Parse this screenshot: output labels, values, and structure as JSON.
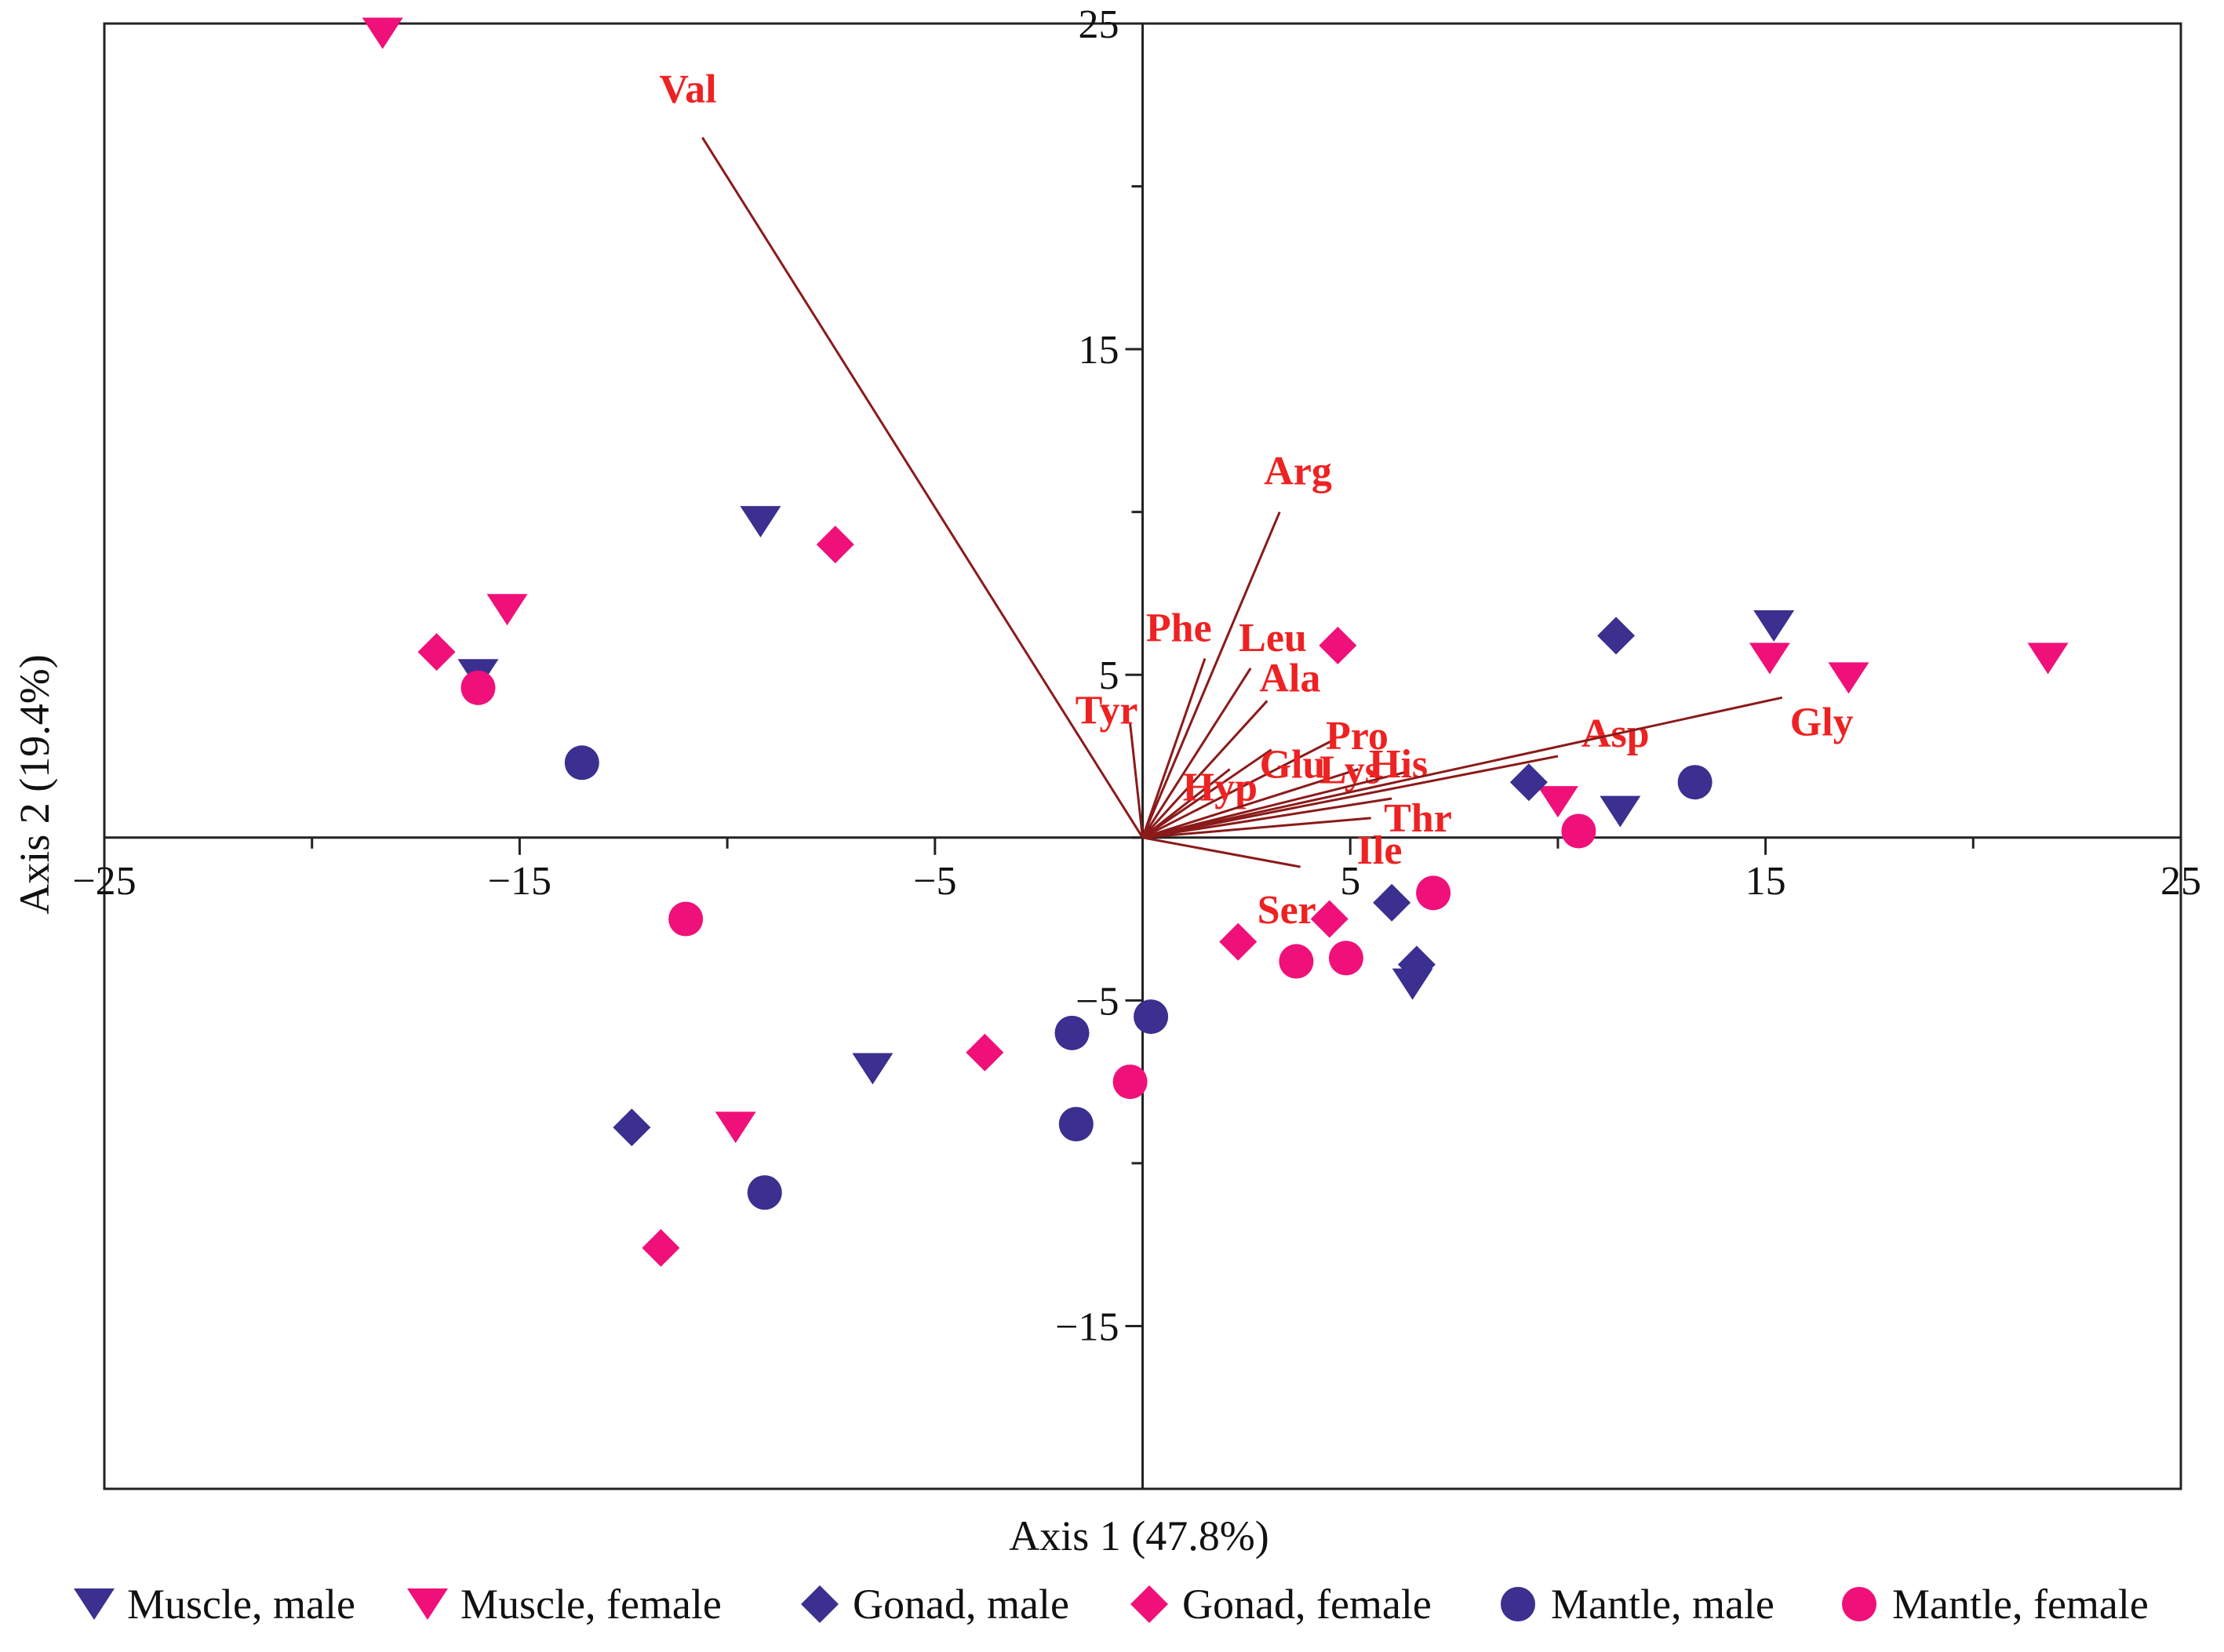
{
  "chart_data": {
    "type": "scatter",
    "subtype": "pca-biplot",
    "xlabel": "Axis 1 (47.8%)",
    "ylabel": "Axis 2 (19.4%)",
    "xlim": [
      -25,
      25
    ],
    "ylim": [
      -20,
      25
    ],
    "x_ticks": [
      -25,
      -15,
      -5,
      5,
      15,
      25
    ],
    "y_ticks": [
      -15,
      -5,
      5,
      15,
      25
    ],
    "x_tick_labels": [
      "−25",
      "−15",
      "−5",
      "5",
      "15",
      "25"
    ],
    "y_tick_labels": [
      "−15",
      "−5",
      "5",
      "15",
      "25"
    ],
    "legend_position": "bottom",
    "colors": {
      "male": "#3b2f8f",
      "female": "#f0107a",
      "vector": "#8b1a1a",
      "vector_label": "#ee2222"
    },
    "vectors": [
      {
        "name": "Val",
        "x": -10.6,
        "y": 21.5
      },
      {
        "name": "Arg",
        "x": 3.3,
        "y": 10.0
      },
      {
        "name": "Phe",
        "x": 1.5,
        "y": 5.5
      },
      {
        "name": "Leu",
        "x": 2.6,
        "y": 5.2
      },
      {
        "name": "Ala",
        "x": 3.0,
        "y": 4.2
      },
      {
        "name": "Tyr",
        "x": -0.3,
        "y": 3.5
      },
      {
        "name": "Pro",
        "x": 4.6,
        "y": 3.0
      },
      {
        "name": "Glu",
        "x": 3.1,
        "y": 2.7
      },
      {
        "name": "Hyp",
        "x": 2.1,
        "y": 2.1
      },
      {
        "name": "Lys",
        "x": 5.2,
        "y": 2.1
      },
      {
        "name": "His",
        "x": 6.3,
        "y": 2.0
      },
      {
        "name": "Asp",
        "x": 10.0,
        "y": 2.5
      },
      {
        "name": "Gly",
        "x": 15.4,
        "y": 4.3
      },
      {
        "name": "Thr",
        "x": 6.0,
        "y": 1.2
      },
      {
        "name": "Ile",
        "x": 5.5,
        "y": 0.6
      },
      {
        "name": "Ser",
        "x": 3.8,
        "y": -0.9
      }
    ],
    "series": [
      {
        "name": "Muscle, male",
        "marker": "triangle-down",
        "color": "#3b2f8f",
        "points": [
          [
            -16.0,
            5.0
          ],
          [
            -9.2,
            9.7
          ],
          [
            -6.5,
            -7.1
          ],
          [
            11.5,
            0.8
          ],
          [
            15.2,
            6.5
          ],
          [
            6.5,
            -4.5
          ]
        ]
      },
      {
        "name": "Muscle, female",
        "marker": "triangle-down",
        "color": "#f0107a",
        "points": [
          [
            -18.3,
            24.7
          ],
          [
            -15.3,
            7.0
          ],
          [
            -9.8,
            -8.9
          ],
          [
            10.0,
            1.1
          ],
          [
            15.1,
            5.5
          ],
          [
            17.0,
            4.9
          ],
          [
            21.8,
            5.5
          ]
        ]
      },
      {
        "name": "Gonad, male",
        "marker": "diamond",
        "color": "#3b2f8f",
        "points": [
          [
            -12.3,
            -8.9
          ],
          [
            9.3,
            1.7
          ],
          [
            11.4,
            6.2
          ],
          [
            6.0,
            -2.0
          ],
          [
            6.6,
            -3.9
          ]
        ]
      },
      {
        "name": "Gonad, female",
        "marker": "diamond",
        "color": "#f0107a",
        "points": [
          [
            -17.0,
            5.7
          ],
          [
            -7.4,
            9.0
          ],
          [
            -11.6,
            -12.6
          ],
          [
            -3.8,
            -6.6
          ],
          [
            2.3,
            -3.2
          ],
          [
            4.5,
            -2.5
          ],
          [
            4.7,
            5.9
          ]
        ]
      },
      {
        "name": "Mantle, male",
        "marker": "circle",
        "color": "#3b2f8f",
        "points": [
          [
            -13.5,
            2.3
          ],
          [
            -9.1,
            -10.9
          ],
          [
            -1.7,
            -6.0
          ],
          [
            -1.6,
            -8.8
          ],
          [
            0.2,
            -5.5
          ],
          [
            13.3,
            1.7
          ]
        ]
      },
      {
        "name": "Mantle, female",
        "marker": "circle",
        "color": "#f0107a",
        "points": [
          [
            -16.0,
            4.6
          ],
          [
            -11.0,
            -2.5
          ],
          [
            -0.3,
            -7.5
          ],
          [
            3.7,
            -3.8
          ],
          [
            4.9,
            -3.7
          ],
          [
            7.0,
            -1.7
          ],
          [
            10.5,
            0.2
          ]
        ]
      }
    ]
  }
}
